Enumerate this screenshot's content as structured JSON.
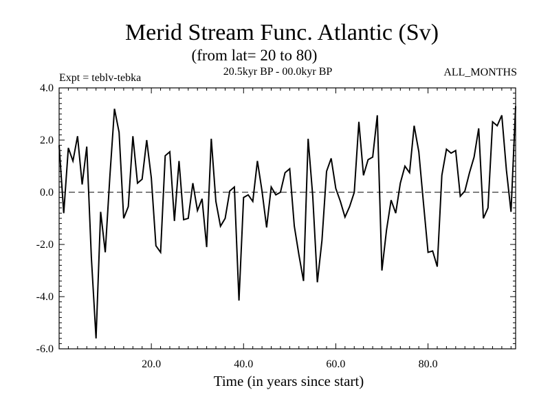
{
  "chart_data": {
    "type": "line",
    "title": "Merid Stream Func. Atlantic (Sv)",
    "subtitle": "(from lat= 20 to 80)",
    "annotations": {
      "left": "Expt = teblv-tebka",
      "center": "20.5kyr BP - 00.0kyr BP",
      "right": "ALL_MONTHS"
    },
    "xlabel": "Time (in years since start)",
    "ylabel": "",
    "xlim": [
      0,
      99
    ],
    "ylim": [
      -6.0,
      4.0
    ],
    "x_tick_labels": [
      "20.0",
      "40.0",
      "60.0",
      "80.0"
    ],
    "x_tick_values": [
      20,
      40,
      60,
      80
    ],
    "y_tick_labels": [
      "-6.0",
      "-4.0",
      "-2.0",
      "0.0",
      "2.0",
      "4.0"
    ],
    "y_tick_values": [
      -6,
      -4,
      -2,
      0,
      2,
      4
    ],
    "zero_line": "dashed",
    "series": [
      {
        "name": "Merid Stream Func.",
        "x": [
          0,
          1,
          2,
          3,
          4,
          5,
          6,
          7,
          8,
          9,
          10,
          11,
          12,
          13,
          14,
          15,
          16,
          17,
          18,
          19,
          20,
          21,
          22,
          23,
          24,
          25,
          26,
          27,
          28,
          29,
          30,
          31,
          32,
          33,
          34,
          35,
          36,
          37,
          38,
          39,
          40,
          41,
          42,
          43,
          44,
          45,
          46,
          47,
          48,
          49,
          50,
          51,
          52,
          53,
          54,
          55,
          56,
          57,
          58,
          59,
          60,
          61,
          62,
          63,
          64,
          65,
          66,
          67,
          68,
          69,
          70,
          71,
          72,
          73,
          74,
          75,
          76,
          77,
          78,
          79,
          80,
          81,
          82,
          83,
          84,
          85,
          86,
          87,
          88,
          89,
          90,
          91,
          92,
          93,
          94,
          95,
          96,
          97,
          98,
          99
        ],
        "values": [
          1.8,
          -0.8,
          1.7,
          1.2,
          2.15,
          0.3,
          1.75,
          -2.5,
          -5.6,
          -0.75,
          -2.3,
          0.6,
          3.2,
          2.3,
          -1.0,
          -0.55,
          2.15,
          0.35,
          0.5,
          2.0,
          0.55,
          -2.05,
          -2.3,
          1.4,
          1.55,
          -1.1,
          1.2,
          -1.05,
          -1.0,
          0.35,
          -0.7,
          -0.25,
          -2.1,
          2.05,
          -0.35,
          -1.3,
          -1.0,
          0.05,
          0.2,
          -4.15,
          -0.2,
          -0.1,
          -0.35,
          1.2,
          0.05,
          -1.35,
          0.2,
          -0.1,
          0.0,
          0.75,
          0.9,
          -1.3,
          -2.4,
          -3.4,
          2.05,
          -0.15,
          -3.45,
          -1.85,
          0.8,
          1.3,
          0.15,
          -0.35,
          -0.95,
          -0.55,
          0.0,
          2.7,
          0.65,
          1.25,
          1.35,
          2.95,
          -3.0,
          -1.45,
          -0.3,
          -0.8,
          0.35,
          1.0,
          0.75,
          2.55,
          1.55,
          -0.4,
          -2.3,
          -2.25,
          -2.85,
          0.65,
          1.65,
          1.5,
          1.6,
          -0.15,
          0.05,
          0.75,
          1.35,
          2.45,
          -1.0,
          -0.6,
          2.7,
          2.55,
          2.95,
          0.85,
          -0.75,
          3.3
        ]
      }
    ]
  }
}
